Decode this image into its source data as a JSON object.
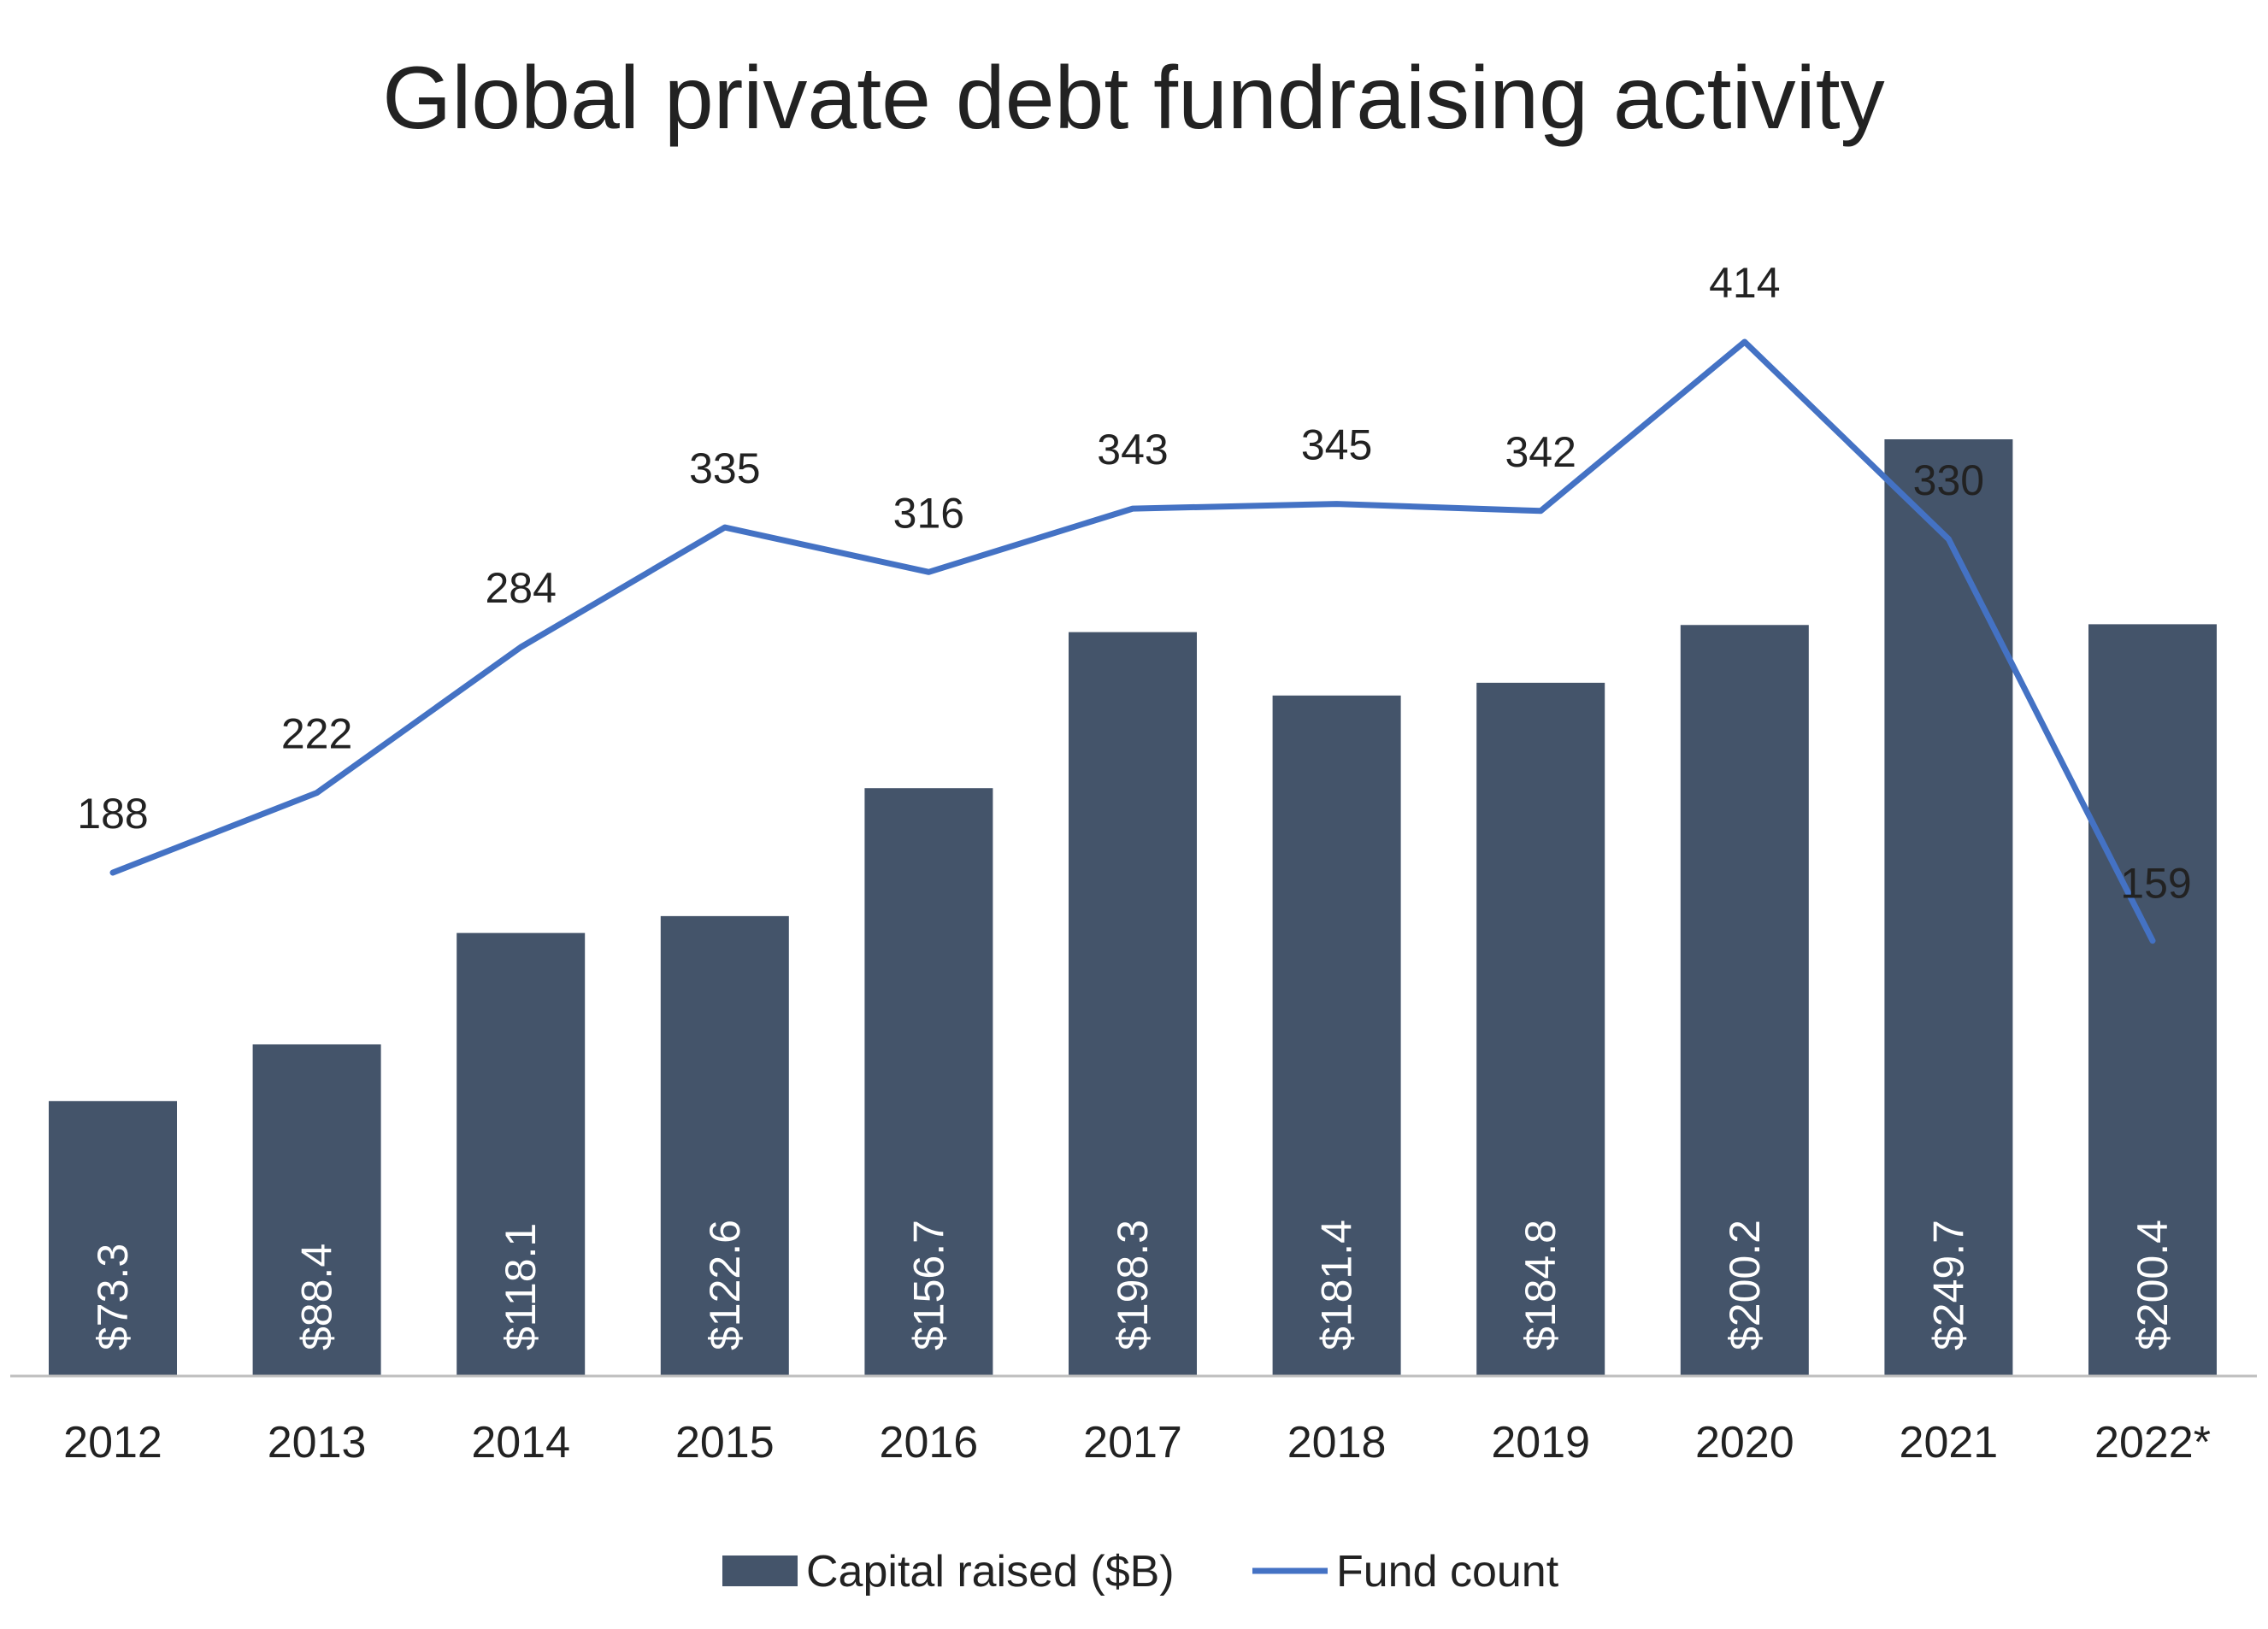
{
  "chart_data": {
    "type": "bar",
    "title": "Global private debt fundraising activity",
    "categories": [
      "2012",
      "2013",
      "2014",
      "2015",
      "2016",
      "2017",
      "2018",
      "2019",
      "2020",
      "2021",
      "2022*"
    ],
    "series": [
      {
        "name": "Capital raised ($B)",
        "type": "bar",
        "color": "#44546a",
        "values": [
          73.3,
          88.4,
          118.1,
          122.6,
          156.7,
          198.3,
          181.4,
          184.8,
          200.2,
          249.7,
          200.4
        ],
        "labels": [
          "$73.3",
          "$88.4",
          "$118.1",
          "$122.6",
          "$156.7",
          "$198.3",
          "$181.4",
          "$184.8",
          "$200.2",
          "$249.7",
          "$200.4"
        ]
      },
      {
        "name": "Fund count",
        "type": "line",
        "color": "#4472c4",
        "values": [
          188,
          222,
          284,
          335,
          316,
          343,
          345,
          342,
          414,
          330,
          159
        ],
        "labels": [
          "188",
          "222",
          "284",
          "335",
          "316",
          "343",
          "345",
          "342",
          "414",
          "330",
          "159"
        ]
      }
    ],
    "legend_position": "bottom",
    "grid": false,
    "ylim_bar": [
      0,
      250
    ],
    "ylim_line": [
      0,
      414
    ]
  }
}
